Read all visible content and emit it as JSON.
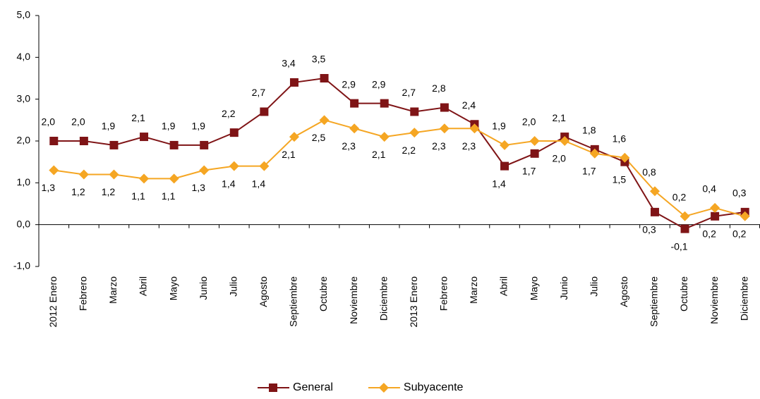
{
  "chart_data": {
    "type": "line",
    "categories": [
      "2012 Enero",
      "Febrero",
      "Marzo",
      "Abril",
      "Mayo",
      "Junio",
      "Julio",
      "Agosto",
      "Septiembre",
      "Octubre",
      "Noviembre",
      "Diciembre",
      "2013 Enero",
      "Febrero",
      "Marzo",
      "Abril",
      "Mayo",
      "Junio",
      "Julio",
      "Agosto",
      "Septiembre",
      "Octubre",
      "Noviembre",
      "Diciembre"
    ],
    "series": [
      {
        "name": "General",
        "color": "#7f1416",
        "marker": "square",
        "values": [
          2.0,
          2.0,
          1.9,
          2.1,
          1.9,
          1.9,
          2.2,
          2.7,
          3.4,
          3.5,
          2.9,
          2.9,
          2.7,
          2.8,
          2.4,
          1.4,
          1.7,
          2.1,
          1.8,
          1.5,
          0.3,
          -0.1,
          0.2,
          0.3
        ],
        "value_labels": [
          "2,0",
          "2,0",
          "1,9",
          "2,1",
          "1,9",
          "1,9",
          "2,2",
          "2,7",
          "3,4",
          "3,5",
          "2,9",
          "2,9",
          "2,7",
          "2,8",
          "2,4",
          "1,4",
          "1,7",
          "2,1",
          "1,8",
          "1,5",
          "0,3",
          "-0,1",
          "0,2",
          "0,3"
        ]
      },
      {
        "name": "Subyacente",
        "color": "#f5a623",
        "marker": "diamond",
        "values": [
          1.3,
          1.2,
          1.2,
          1.1,
          1.1,
          1.3,
          1.4,
          1.4,
          2.1,
          2.5,
          2.3,
          2.1,
          2.2,
          2.3,
          2.3,
          1.9,
          2.0,
          2.0,
          1.7,
          1.6,
          0.8,
          0.2,
          0.4,
          0.2
        ],
        "value_labels": [
          "1,3",
          "1,2",
          "1,2",
          "1,1",
          "1,1",
          "1,3",
          "1,4",
          "1,4",
          "2,1",
          "2,5",
          "2,3",
          "2,1",
          "2,2",
          "2,3",
          "2,3",
          "1,9",
          "2,0",
          "2,0",
          "1,7",
          "1,6",
          "0,8",
          "0,2",
          "0,4",
          "0,2"
        ]
      }
    ],
    "ylim": [
      -1,
      5
    ],
    "yticks": [
      {
        "value": -1,
        "label": "-1,0"
      },
      {
        "value": 0,
        "label": "0,0"
      },
      {
        "value": 1,
        "label": "1,0"
      },
      {
        "value": 2,
        "label": "2,0"
      },
      {
        "value": 3,
        "label": "3,0"
      },
      {
        "value": 4,
        "label": "4,0"
      },
      {
        "value": 5,
        "label": "5,0"
      }
    ],
    "grid": false,
    "legend": "bottom"
  }
}
